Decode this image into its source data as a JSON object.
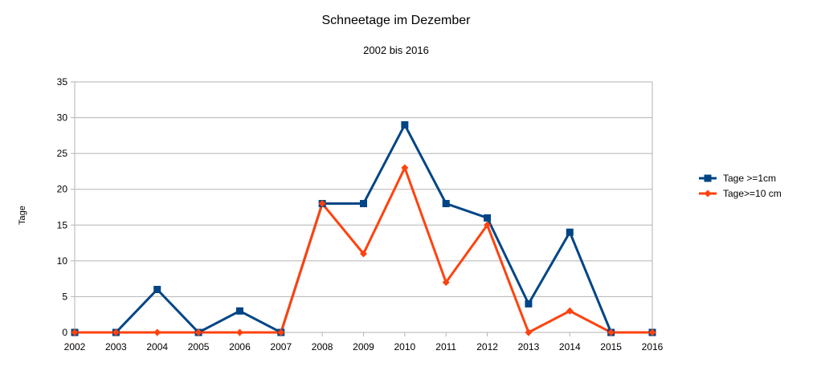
{
  "chart_data": {
    "type": "line",
    "title": "Schneetage im Dezember",
    "subtitle": "2002 bis 2016",
    "xlabel": "",
    "ylabel": "Tage",
    "x": [
      "2002",
      "2003",
      "2004",
      "2005",
      "2006",
      "2007",
      "2008",
      "2009",
      "2010",
      "2011",
      "2012",
      "2013",
      "2014",
      "2015",
      "2016"
    ],
    "ylim": [
      0,
      35
    ],
    "yticks": [
      "0",
      "5",
      "10",
      "15",
      "20",
      "25",
      "30",
      "35"
    ],
    "grid": true,
    "legend_position": "right",
    "series": [
      {
        "name": "Tage >=1cm",
        "color": "#004586",
        "marker": "square",
        "values": [
          0,
          0,
          6,
          0,
          3,
          0,
          18,
          18,
          29,
          18,
          16,
          4,
          14,
          0,
          0
        ]
      },
      {
        "name": "Tage>=10 cm",
        "color": "#ff420e",
        "marker": "diamond",
        "values": [
          0,
          0,
          0,
          0,
          0,
          0,
          18,
          11,
          23,
          7,
          15,
          0,
          3,
          0,
          0
        ]
      }
    ]
  }
}
